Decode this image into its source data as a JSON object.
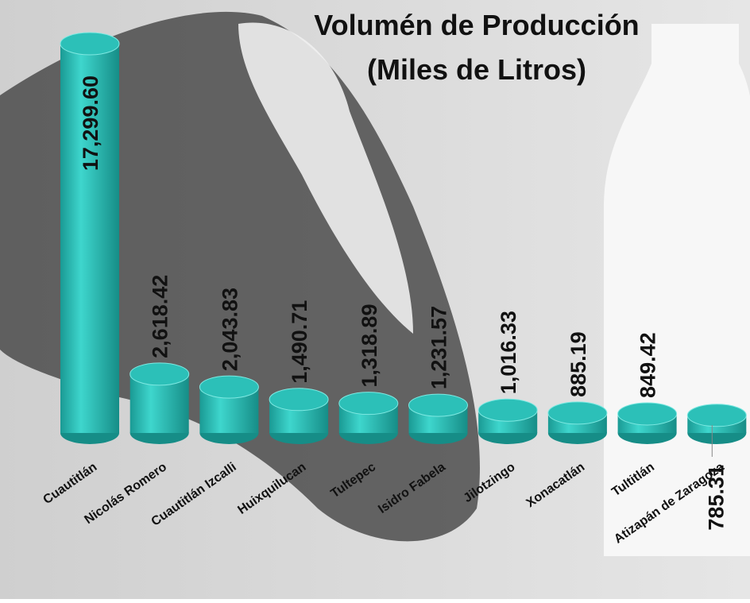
{
  "chart_data": {
    "type": "bar",
    "title": "Volumén de Producción",
    "subtitle": "(Miles de Litros)",
    "categories": [
      "Cuautitlán",
      "Nicolás Romero",
      "Cuautitlán Izcalli",
      "Huixquilucan",
      "Tultepec",
      "Isidro Fabela",
      "Jilotzingo",
      "Xonacatlán",
      "Tultitlán",
      "Atizapán de Zaragoza"
    ],
    "values": [
      17299.6,
      2618.42,
      2043.83,
      1490.71,
      1318.89,
      1231.57,
      1016.33,
      885.19,
      849.42,
      785.31
    ],
    "value_labels": [
      "17,299.60",
      "2,618.42",
      "2,043.83",
      "1,490.71",
      "1,318.89",
      "1,231.57",
      "1,016.33",
      "885.19",
      "849.42",
      "785.31"
    ],
    "color": "#2cc0b8"
  }
}
